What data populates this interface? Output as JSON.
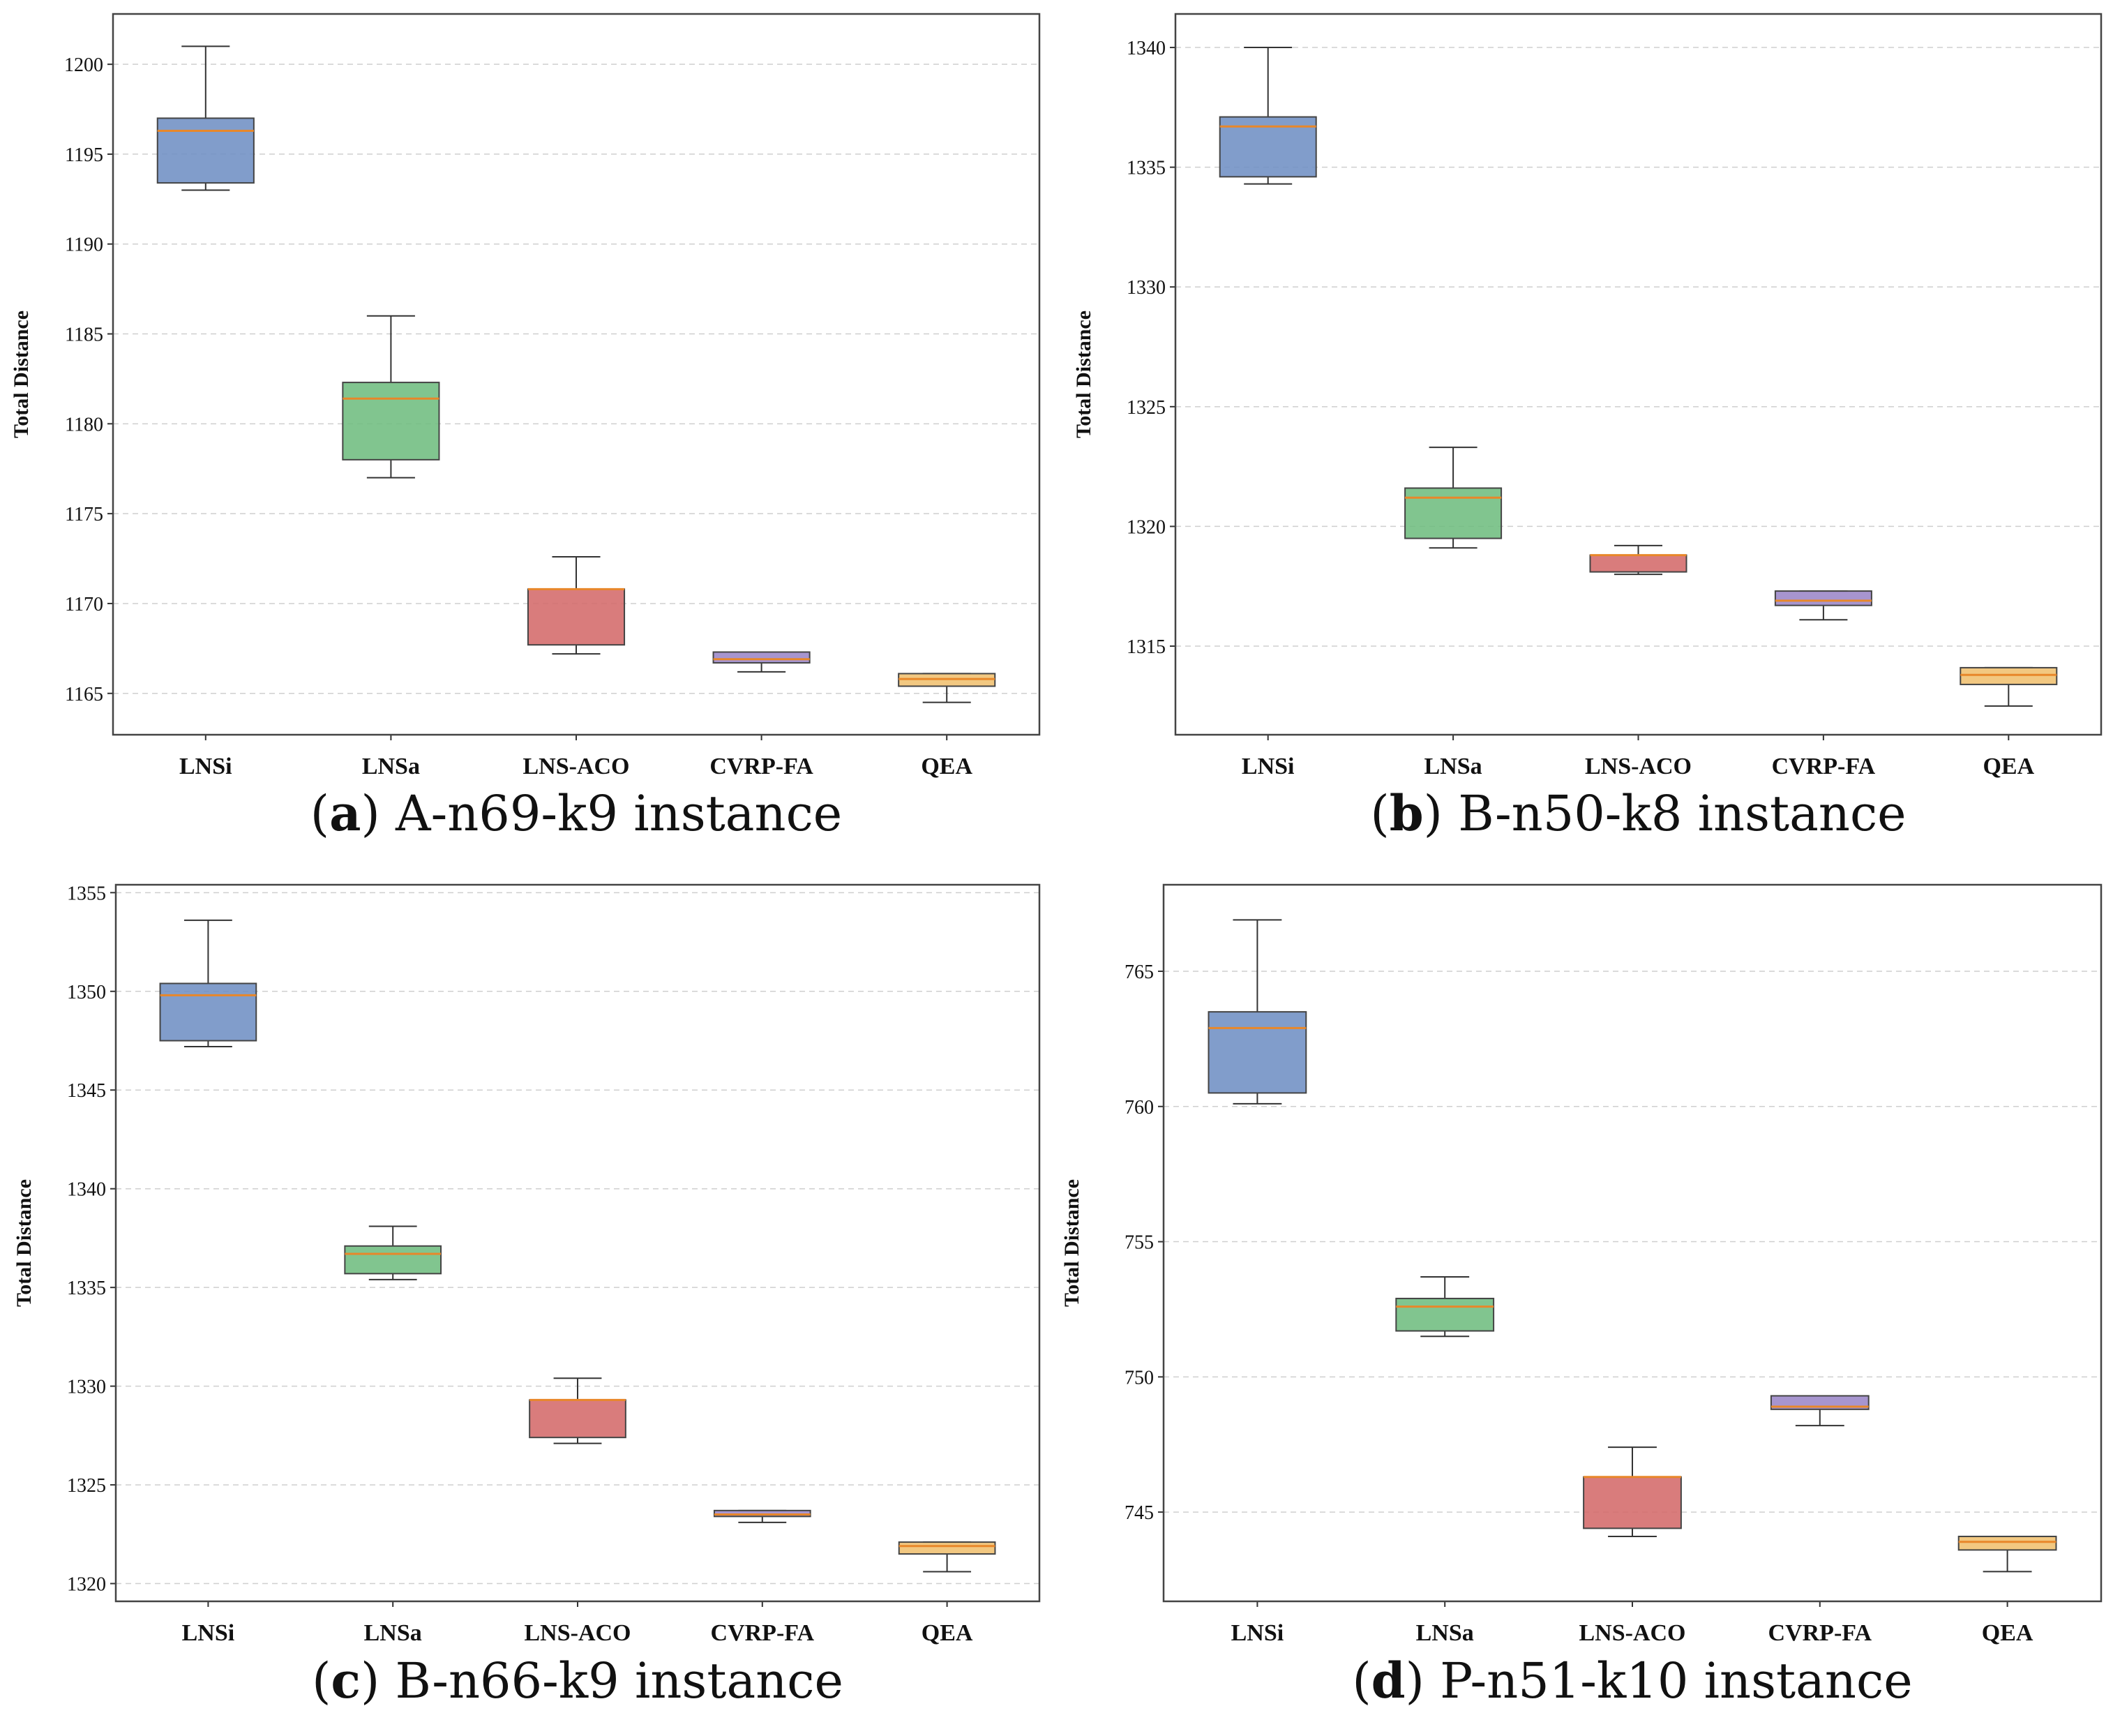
{
  "chart_data": [
    {
      "type": "box",
      "panel": "a",
      "caption": "A-n69-k9 instance",
      "ylabel": "Total Distance",
      "categories": [
        "LNSi",
        "LNSa",
        "LNS-ACO",
        "CVRP-FA",
        "QEA"
      ],
      "ylim": [
        1162.7,
        1202.8
      ],
      "yticks": [
        1165,
        1170,
        1175,
        1180,
        1185,
        1190,
        1195,
        1200
      ],
      "boxes": [
        {
          "min": 1193.0,
          "q1": 1193.4,
          "median": 1196.3,
          "q3": 1197.0,
          "max": 1201.0,
          "color": "#6f8fc4"
        },
        {
          "min": 1177.0,
          "q1": 1178.0,
          "median": 1181.4,
          "q3": 1182.3,
          "max": 1186.0,
          "color": "#6fbd80"
        },
        {
          "min": 1167.2,
          "q1": 1167.7,
          "median": 1170.8,
          "q3": 1170.8,
          "max": 1172.6,
          "color": "#d46a6a"
        },
        {
          "min": 1166.2,
          "q1": 1166.7,
          "median": 1166.9,
          "q3": 1167.3,
          "max": 1167.3,
          "color": "#9b86c8"
        },
        {
          "min": 1164.5,
          "q1": 1165.4,
          "median": 1165.8,
          "q3": 1166.1,
          "max": 1166.1,
          "color": "#f0c070"
        }
      ]
    },
    {
      "type": "box",
      "panel": "b",
      "caption": "B-n50-k8 instance",
      "ylabel": "Total Distance",
      "categories": [
        "LNSi",
        "LNSa",
        "LNS-ACO",
        "CVRP-FA",
        "QEA"
      ],
      "ylim": [
        1311.3,
        1341.4
      ],
      "yticks": [
        1315,
        1320,
        1325,
        1330,
        1335,
        1340
      ],
      "boxes": [
        {
          "min": 1334.3,
          "q1": 1334.6,
          "median": 1336.7,
          "q3": 1337.1,
          "max": 1340.0,
          "color": "#6f8fc4"
        },
        {
          "min": 1319.1,
          "q1": 1319.5,
          "median": 1321.2,
          "q3": 1321.6,
          "max": 1323.3,
          "color": "#6fbd80"
        },
        {
          "min": 1318.0,
          "q1": 1318.1,
          "median": 1318.8,
          "q3": 1318.8,
          "max": 1319.2,
          "color": "#d46a6a"
        },
        {
          "min": 1316.1,
          "q1": 1316.7,
          "median": 1316.9,
          "q3": 1317.3,
          "max": 1317.3,
          "color": "#9b86c8"
        },
        {
          "min": 1312.5,
          "q1": 1313.4,
          "median": 1313.8,
          "q3": 1314.1,
          "max": 1314.1,
          "color": "#f0c070"
        }
      ]
    },
    {
      "type": "box",
      "panel": "c",
      "caption": "B-n66-k9 instance",
      "ylabel": "Total Distance",
      "categories": [
        "LNSi",
        "LNSa",
        "LNS-ACO",
        "CVRP-FA",
        "QEA"
      ],
      "ylim": [
        1319.1,
        1355.4
      ],
      "yticks": [
        1320,
        1325,
        1330,
        1335,
        1340,
        1345,
        1350,
        1355
      ],
      "boxes": [
        {
          "min": 1347.2,
          "q1": 1347.5,
          "median": 1349.8,
          "q3": 1350.4,
          "max": 1353.6,
          "color": "#6f8fc4"
        },
        {
          "min": 1335.4,
          "q1": 1335.7,
          "median": 1336.7,
          "q3": 1337.1,
          "max": 1338.1,
          "color": "#6fbd80"
        },
        {
          "min": 1327.1,
          "q1": 1327.4,
          "median": 1329.3,
          "q3": 1329.3,
          "max": 1330.4,
          "color": "#d46a6a"
        },
        {
          "min": 1323.1,
          "q1": 1323.4,
          "median": 1323.5,
          "q3": 1323.7,
          "max": 1323.7,
          "color": "#9b86c8"
        },
        {
          "min": 1320.6,
          "q1": 1321.5,
          "median": 1321.9,
          "q3": 1322.1,
          "max": 1322.1,
          "color": "#f0c070"
        }
      ]
    },
    {
      "type": "box",
      "panel": "d",
      "caption": "P-n51-k10 instance",
      "ylabel": "Total Distance",
      "categories": [
        "LNSi",
        "LNSa",
        "LNS-ACO",
        "CVRP-FA",
        "QEA"
      ],
      "ylim": [
        741.7,
        768.2
      ],
      "yticks": [
        745,
        750,
        755,
        760,
        765
      ],
      "boxes": [
        {
          "min": 760.1,
          "q1": 760.5,
          "median": 762.9,
          "q3": 763.5,
          "max": 766.9,
          "color": "#6f8fc4"
        },
        {
          "min": 751.5,
          "q1": 751.7,
          "median": 752.6,
          "q3": 752.9,
          "max": 753.7,
          "color": "#6fbd80"
        },
        {
          "min": 744.1,
          "q1": 744.4,
          "median": 746.3,
          "q3": 746.3,
          "max": 747.4,
          "color": "#d46a6a"
        },
        {
          "min": 748.2,
          "q1": 748.8,
          "median": 748.9,
          "q3": 749.3,
          "max": 749.3,
          "color": "#9b86c8"
        },
        {
          "min": 742.8,
          "q1": 743.6,
          "median": 743.9,
          "q3": 744.1,
          "max": 744.1,
          "color": "#f0c070"
        }
      ]
    }
  ]
}
